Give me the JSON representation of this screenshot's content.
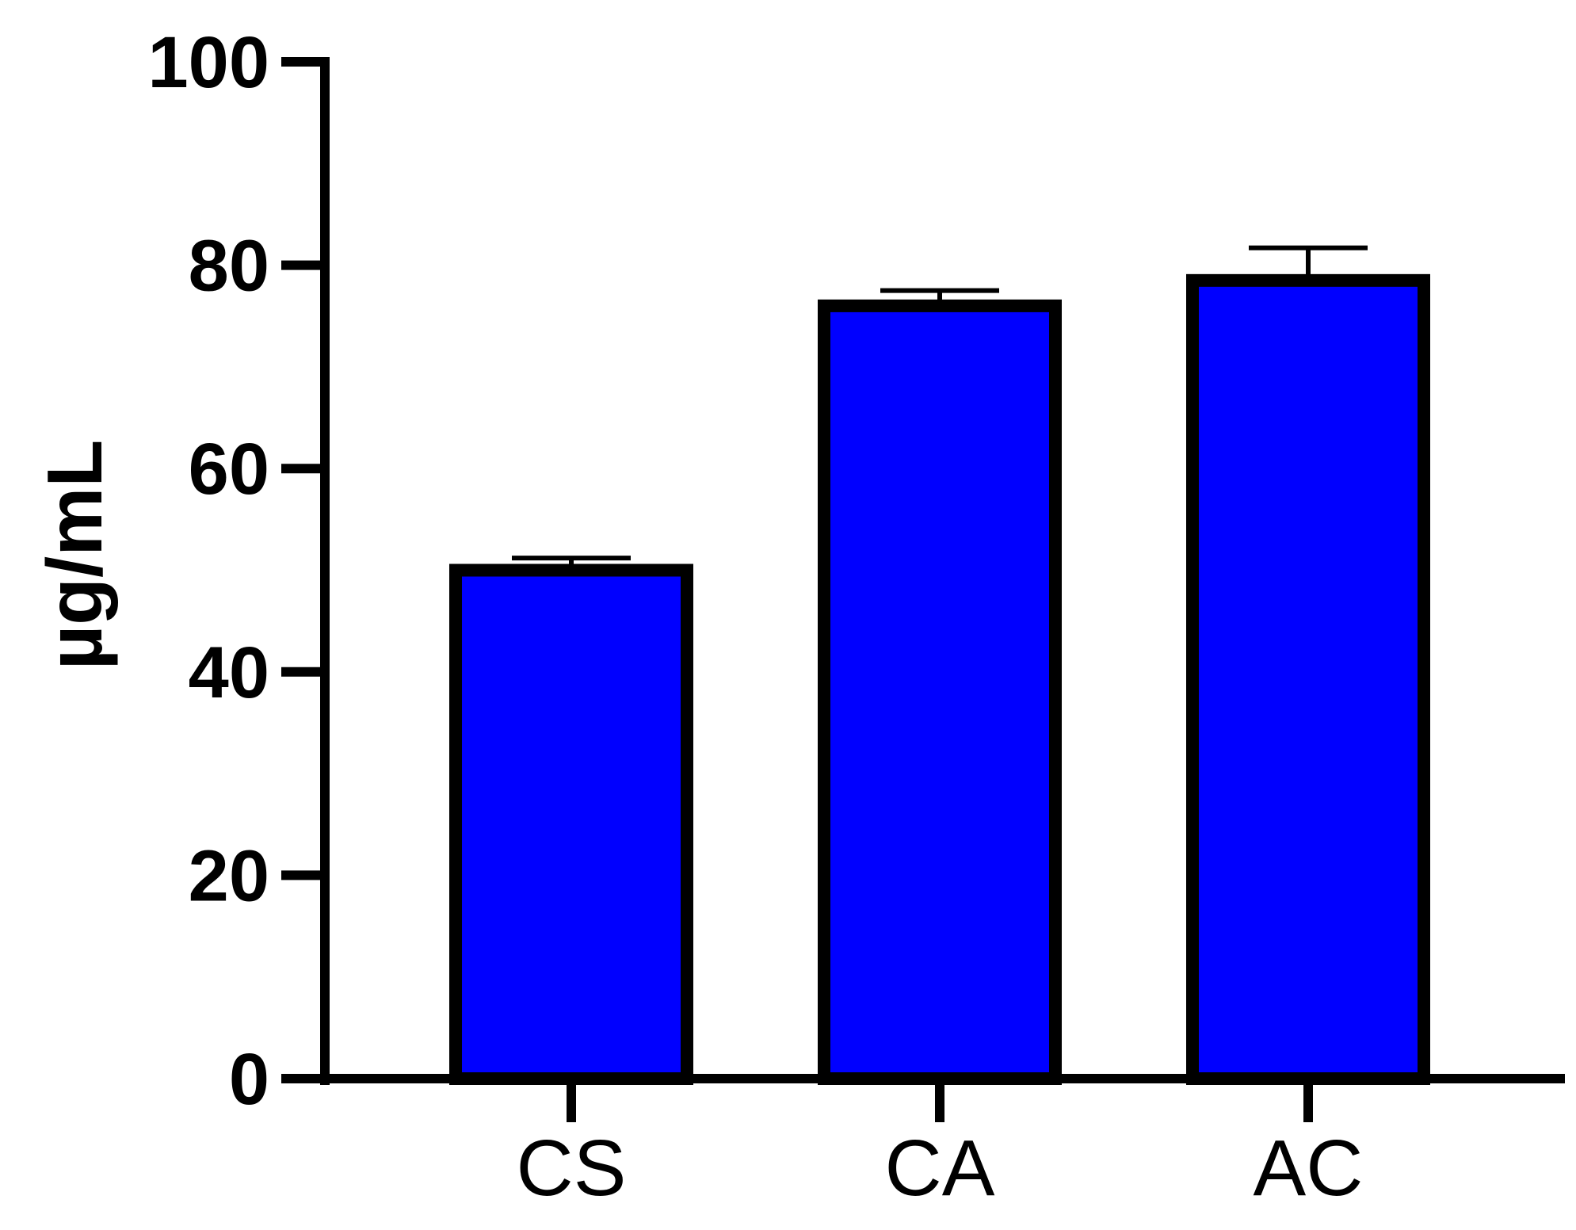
{
  "chart_data": {
    "type": "bar",
    "categories": [
      "CS",
      "CA",
      "AC"
    ],
    "values": [
      50,
      76,
      78.5
    ],
    "error_upper": [
      1.2,
      1.5,
      3.2
    ],
    "xlabel": "",
    "ylabel": "µg/mL",
    "ylim": [
      0,
      100
    ],
    "yticks": [
      0,
      20,
      40,
      60,
      80,
      100
    ],
    "ytick_labels": [
      "0",
      "20",
      "40",
      "60",
      "80",
      "100"
    ],
    "grid": false,
    "legend": "none",
    "bar_color": "#0000ff",
    "edge_color": "#000000"
  }
}
